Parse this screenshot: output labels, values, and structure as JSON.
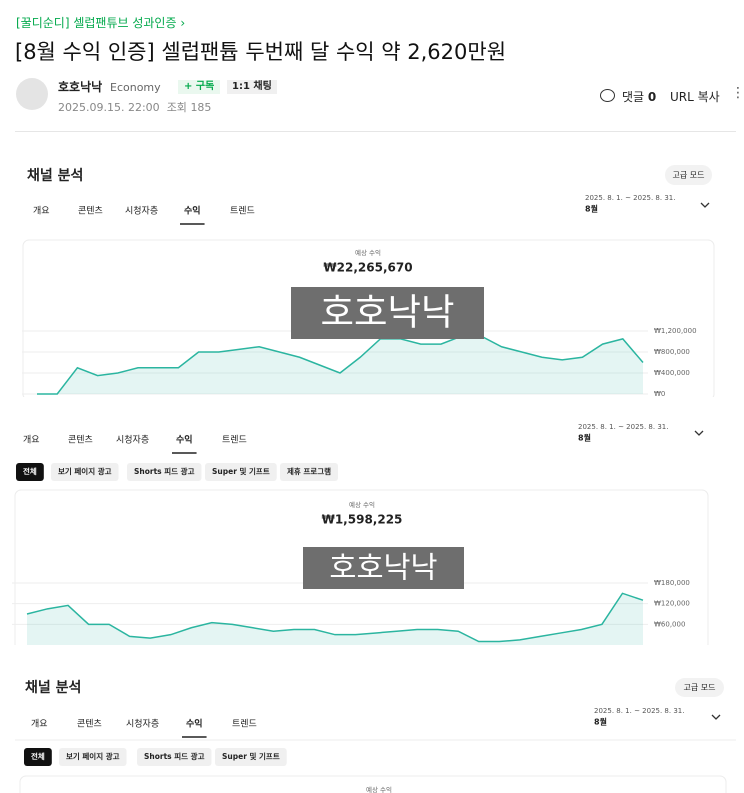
{
  "post": {
    "breadcrumb": "[꿀디순디] 셀럽팬튜브 성과인증",
    "title": "[8월 수익 인증] 셀럽팬튭 두번째 달 수익 약 2,620만원",
    "author": "호호낙낙",
    "grade": "Economy",
    "subscribe": "구독",
    "chat": "1:1 채팅",
    "date": "2025.09.15. 22:00",
    "views_label": "조회",
    "views": 185,
    "comments_label": "댓글",
    "comments": 0,
    "url_copy": "URL 복사"
  },
  "panels": [
    {
      "heading": "채널 분석",
      "mode": "고급 모드",
      "tabs": [
        "개요",
        "콘텐츠",
        "시청자층",
        "수익",
        "트렌드"
      ],
      "active_tab": 3,
      "date_range": "2025. 8. 1. ~ 2025. 8. 31.",
      "month": "8월",
      "chart": {
        "type": "area",
        "label": "예상 수익",
        "total": "₩22,265,670",
        "watermark": "호호낙낙",
        "color": "#2bb5a0",
        "values": [
          0,
          0,
          500000,
          350000,
          400000,
          500000,
          500000,
          500000,
          800000,
          800000,
          850000,
          900000,
          800000,
          700000,
          550000,
          400000,
          700000,
          1050000,
          1050000,
          950000,
          950000,
          1100000,
          1100000,
          900000,
          800000,
          700000,
          650000,
          700000,
          950000,
          1050000,
          600000
        ],
        "ylim": [
          0,
          1200000
        ],
        "yticks": [
          {
            "value": 0,
            "label": "₩0"
          },
          {
            "value": 400000,
            "label": "₩400,000"
          },
          {
            "value": 800000,
            "label": "₩800,000"
          },
          {
            "value": 1200000,
            "label": "₩1,200,000"
          }
        ],
        "grid": true
      }
    },
    {
      "tabs": [
        "개요",
        "콘텐츠",
        "시청자층",
        "수익",
        "트렌드"
      ],
      "active_tab": 3,
      "date_range": "2025. 8. 1. ~ 2025. 8. 31.",
      "month": "8월",
      "filters": [
        "전체",
        "보기 페이지 광고",
        "Shorts 피드 광고",
        "Super 및 기프트",
        "제휴 프로그램"
      ],
      "active_filter": 0,
      "chart": {
        "type": "area",
        "label": "예상 수익",
        "total": "₩1,598,225",
        "watermark": "호호낙낙",
        "color": "#2bb5a0",
        "values": [
          90000,
          105000,
          115000,
          60000,
          60000,
          25000,
          20000,
          30000,
          50000,
          65000,
          60000,
          50000,
          40000,
          45000,
          45000,
          30000,
          30000,
          35000,
          40000,
          45000,
          45000,
          40000,
          10000,
          10000,
          15000,
          25000,
          35000,
          45000,
          60000,
          150000,
          130000
        ],
        "ylim": [
          0,
          180000
        ],
        "yticks": [
          {
            "value": 60000,
            "label": "₩60,000"
          },
          {
            "value": 120000,
            "label": "₩120,000"
          },
          {
            "value": 180000,
            "label": "₩180,000"
          }
        ],
        "grid": true
      }
    },
    {
      "heading": "채널 분석",
      "mode": "고급 모드",
      "tabs": [
        "개요",
        "콘텐츠",
        "시청자층",
        "수익",
        "트렌드"
      ],
      "active_tab": 3,
      "date_range": "2025. 8. 1. ~ 2025. 8. 31.",
      "month": "8월",
      "filters": [
        "전체",
        "보기 페이지 광고",
        "Shorts 피드 광고",
        "Super 및 기프트"
      ],
      "active_filter": 0,
      "chart": {
        "label": "예상 수익"
      }
    }
  ]
}
